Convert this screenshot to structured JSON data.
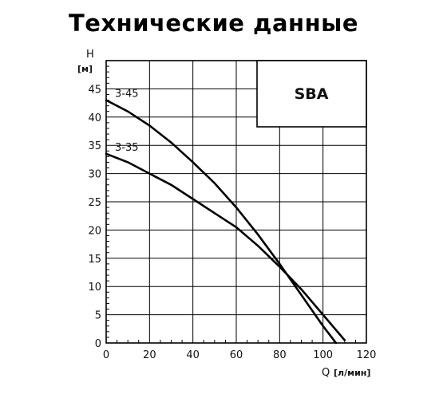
{
  "title": "Технические данные",
  "chart_data": {
    "type": "line",
    "title": "Технические данные",
    "model": "SBA",
    "xlabel": "Q",
    "xunit": "[л/мин]",
    "ylabel": "H",
    "yunit": "[м]",
    "xlim": [
      0,
      120
    ],
    "ylim": [
      0,
      50
    ],
    "xticks": [
      0,
      20,
      40,
      60,
      80,
      100,
      120
    ],
    "yticks": [
      0,
      5,
      10,
      15,
      20,
      25,
      30,
      35,
      40,
      45
    ],
    "grid": true,
    "legend_position": "top-right",
    "series": [
      {
        "name": "3-45",
        "x": [
          0,
          10,
          20,
          30,
          40,
          50,
          60,
          70,
          80,
          90,
          100,
          106
        ],
        "y": [
          43,
          41,
          38.5,
          35.5,
          32,
          28.3,
          24,
          19.2,
          14,
          8.5,
          3,
          0
        ]
      },
      {
        "name": "3-35",
        "x": [
          0,
          10,
          20,
          30,
          40,
          50,
          60,
          70,
          80,
          90,
          100,
          110
        ],
        "y": [
          33.5,
          32,
          30,
          28,
          25.5,
          23,
          20.5,
          17.2,
          13.5,
          9.5,
          5,
          0.5
        ]
      }
    ]
  }
}
